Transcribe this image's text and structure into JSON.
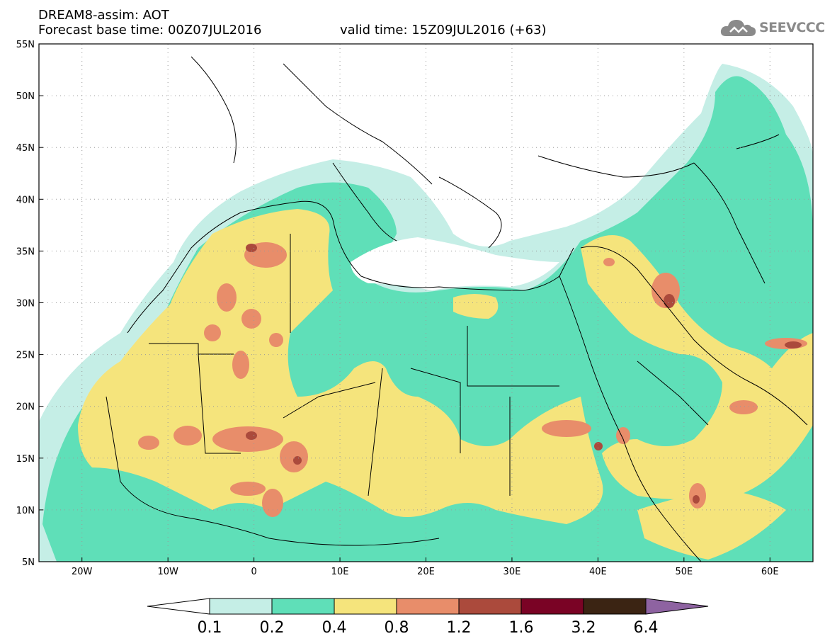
{
  "header": {
    "title": "DREAM8-assim: AOT",
    "base_time": "Forecast base time: 00Z07JUL2016",
    "valid_time": "valid time: 15Z09JUL2016 (+63)"
  },
  "logo": {
    "text": "SEEVCCC",
    "icon": "cloud-icon"
  },
  "map": {
    "extent": {
      "lon_min": -25,
      "lon_max": 65,
      "lat_min": 5,
      "lat_max": 55
    },
    "lat_labels": [
      "5N",
      "10N",
      "15N",
      "20N",
      "25N",
      "30N",
      "35N",
      "40N",
      "45N",
      "50N",
      "55N"
    ],
    "lon_labels": [
      "20W",
      "10W",
      "0",
      "10E",
      "20E",
      "30E",
      "40E",
      "50E",
      "60E"
    ],
    "grid": "dotted"
  },
  "colorbar": {
    "labels": [
      "0.1",
      "0.2",
      "0.4",
      "0.8",
      "1.2",
      "1.6",
      "3.2",
      "6.4"
    ],
    "colors": [
      "#ffffff",
      "#c5eee6",
      "#5fdfb8",
      "#f5e47c",
      "#e88d6a",
      "#ab4a3c",
      "#7a0325",
      "#3b2413",
      "#8e63a1"
    ]
  },
  "levels_colors": {
    "below_0.1": "#ffffff",
    "0.1-0.2": "#c5eee6",
    "0.2-0.4": "#5fdfb8",
    "0.4-0.8": "#f5e47c",
    "0.8-1.2": "#e88d6a",
    "1.2-1.6": "#ab4a3c",
    "1.6-3.2": "#7a0325"
  }
}
